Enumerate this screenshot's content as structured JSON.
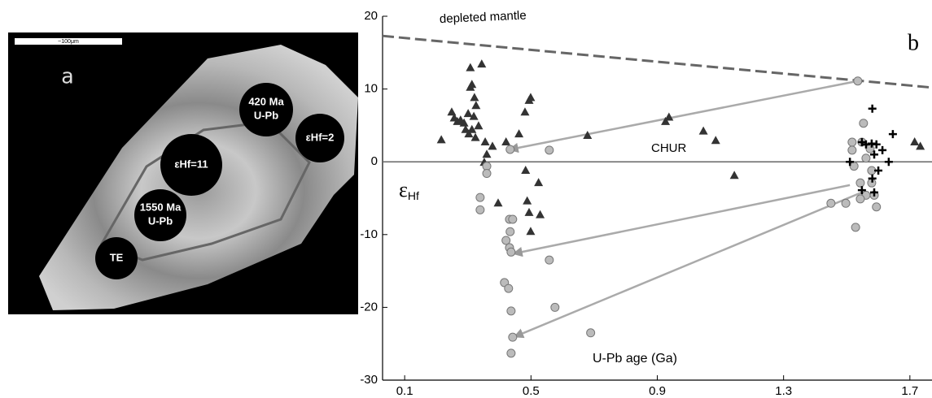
{
  "image_panel": {
    "label": "a",
    "scale_bar": "~100μm",
    "spots": [
      {
        "lines": [
          "420 Ma",
          "U-Pb"
        ]
      },
      {
        "lines": [
          "εHf=2"
        ]
      },
      {
        "lines": [
          "εHf=11"
        ]
      },
      {
        "lines": [
          "1550 Ma",
          "U-Pb"
        ]
      },
      {
        "lines": [
          "TE"
        ]
      }
    ]
  },
  "chart_data": {
    "type": "scatter",
    "panel_label": "b",
    "x_label": "U-Pb age (Ga)",
    "y_label": {
      "symbol": "ε",
      "subscript": "Hf"
    },
    "xlim": [
      0.03,
      1.77
    ],
    "xticks": [
      0.1,
      0.5,
      0.9,
      1.3,
      1.7
    ],
    "ylim": [
      -30,
      20
    ],
    "yticks": [
      -30,
      -20,
      -10,
      0,
      10,
      20
    ],
    "series": [
      {
        "marker": "triangle",
        "color": "#333333",
        "x": [
          0.216,
          0.249,
          0.257,
          0.267,
          0.277,
          0.288,
          0.301,
          0.308,
          0.313,
          0.308,
          0.344,
          0.321,
          0.326,
          0.313,
          0.324,
          0.334,
          0.319,
          0.303,
          0.293,
          0.355,
          0.36,
          0.352,
          0.378,
          0.396,
          0.421,
          0.462,
          0.481,
          0.494,
          0.499,
          0.483,
          0.488,
          0.494,
          0.499,
          0.524,
          0.529,
          0.679,
          0.926,
          0.937,
          1.046,
          1.085,
          1.144,
          1.715,
          1.733
        ],
        "values": [
          3.0,
          6.8,
          6.0,
          5.5,
          5.7,
          5.3,
          6.6,
          10.2,
          10.6,
          12.9,
          13.4,
          8.8,
          7.7,
          4.4,
          3.3,
          4.9,
          6.2,
          3.8,
          4.4,
          2.7,
          1.0,
          -0.1,
          2.1,
          -5.7,
          2.7,
          3.8,
          6.8,
          8.4,
          8.8,
          -1.2,
          -5.4,
          -7.0,
          -9.6,
          -2.9,
          -7.3,
          3.6,
          5.5,
          6.1,
          4.2,
          2.9,
          -1.9,
          2.7,
          2.1
        ]
      },
      {
        "marker": "circle",
        "color": "#bbbbbb",
        "x": [
          1.535,
          0.434,
          0.558,
          0.36,
          0.36,
          0.339,
          0.339,
          0.432,
          0.442,
          0.434,
          0.421,
          0.432,
          0.437,
          0.558,
          0.416,
          0.429,
          0.437,
          0.576,
          0.442,
          0.689,
          0.437,
          1.45,
          1.497,
          1.528,
          1.517,
          1.517,
          1.548,
          1.553,
          1.561,
          1.523,
          1.543,
          1.561,
          1.579,
          1.587,
          1.594,
          1.543,
          1.574,
          1.579
        ],
        "values": [
          11.1,
          1.7,
          1.6,
          -0.6,
          -1.6,
          -4.9,
          -6.6,
          -7.9,
          -7.9,
          -9.6,
          -10.8,
          -11.8,
          -12.4,
          -13.5,
          -16.6,
          -17.4,
          -20.5,
          -20.0,
          -24.1,
          -23.5,
          -26.3,
          -5.7,
          -5.7,
          -9.0,
          2.7,
          1.6,
          2.7,
          5.3,
          0.5,
          -0.6,
          -2.9,
          -4.6,
          -2.9,
          -4.6,
          -6.2,
          -5.1,
          1.8,
          -1.2
        ]
      },
      {
        "marker": "plus",
        "color": "#000000",
        "x": [
          1.581,
          1.548,
          1.561,
          1.579,
          1.594,
          1.587,
          1.646,
          1.613,
          1.6,
          1.581,
          1.548,
          1.587,
          1.633,
          1.51
        ],
        "values": [
          7.3,
          2.7,
          2.4,
          2.5,
          2.4,
          1.0,
          3.8,
          1.6,
          -1.2,
          -2.3,
          -3.9,
          -4.2,
          0.0,
          0.0
        ]
      }
    ],
    "lines": [
      {
        "label": "depleted mantle",
        "dash": true,
        "color": "#666666",
        "x": [
          0.03,
          1.77
        ],
        "values": [
          17.3,
          10.2
        ]
      },
      {
        "label": "CHUR",
        "dash": false,
        "color": "#666666",
        "x": [
          0.03,
          1.77
        ],
        "values": [
          0,
          0
        ]
      }
    ],
    "arrows": [
      {
        "color": "#aaaaaa",
        "x": [
          1.535,
          0.434
        ],
        "values": [
          11.1,
          1.7
        ]
      },
      {
        "color": "#aaaaaa",
        "x": [
          1.51,
          0.447
        ],
        "values": [
          -3.2,
          -12.6
        ]
      },
      {
        "color": "#aaaaaa",
        "x": [
          1.548,
          0.45
        ],
        "values": [
          -4.2,
          -24.0
        ]
      }
    ]
  }
}
